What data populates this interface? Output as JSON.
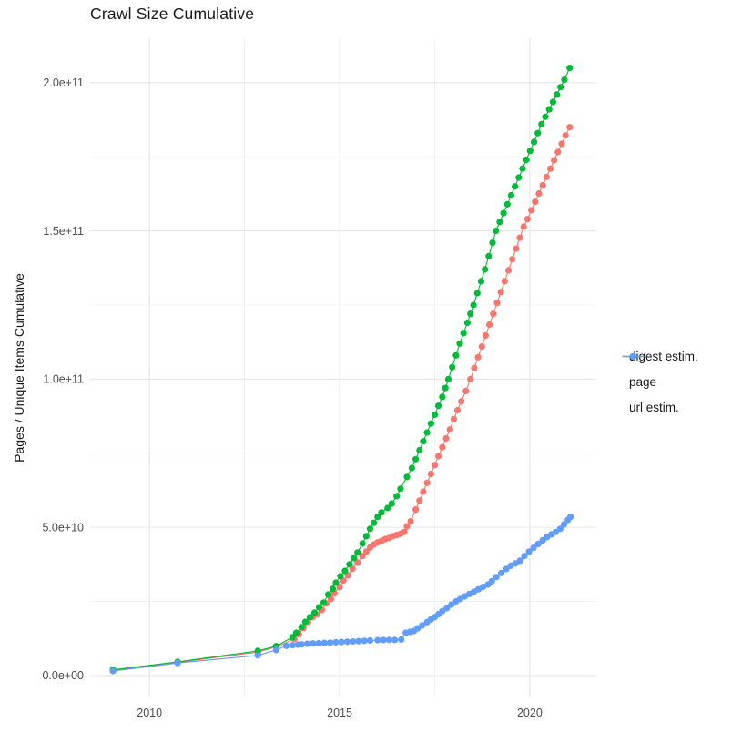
{
  "header": {
    "title": "Crawl Size Cumulative"
  },
  "chart_data": {
    "type": "line",
    "title": "Crawl Size Cumulative",
    "xlabel": "",
    "ylabel": "Pages / Unique Items Cumulative",
    "value_unit": "billions (1e9) of pages / unique items",
    "xlim": [
      2008.44,
      2021.75
    ],
    "ylim_e9": [
      -7.1,
      215
    ],
    "grid": "major and minor light-gray gridlines on white background",
    "legend_position": "right-center",
    "x_ticks": [
      {
        "label": "2010",
        "value": 2010
      },
      {
        "label": "2015",
        "value": 2015
      },
      {
        "label": "2020",
        "value": 2020
      }
    ],
    "x_minor_ticks": [
      2012.5,
      2017.5
    ],
    "y_ticks": [
      {
        "label": "0.0e+00",
        "value_e9": 0
      },
      {
        "label": "5.0e+10",
        "value_e9": 50
      },
      {
        "label": "1.0e+11",
        "value_e9": 100
      },
      {
        "label": "1.5e+11",
        "value_e9": 150
      },
      {
        "label": "2.0e+11",
        "value_e9": 200
      }
    ],
    "y_minor_ticks_e9": [
      25,
      75,
      125,
      175
    ],
    "series": [
      {
        "name": "digest estim.",
        "color": "#F8766D",
        "points": [
          [
            2009.04,
            1.7
          ],
          [
            2010.74,
            4.4
          ],
          [
            2012.85,
            7.9
          ],
          [
            2013.33,
            9.6
          ],
          [
            2013.81,
            12.3
          ],
          [
            2013.93,
            13.9
          ],
          [
            2014.05,
            16.0
          ],
          [
            2014.17,
            18.1
          ],
          [
            2014.29,
            19.7
          ],
          [
            2014.4,
            20.6
          ],
          [
            2014.53,
            22.1
          ],
          [
            2014.65,
            24.3
          ],
          [
            2014.77,
            25.8
          ],
          [
            2014.86,
            27.7
          ],
          [
            2015.0,
            29.8
          ],
          [
            2015.1,
            32.0
          ],
          [
            2015.22,
            33.8
          ],
          [
            2015.34,
            36.0
          ],
          [
            2015.47,
            38.1
          ],
          [
            2015.6,
            40.3
          ],
          [
            2015.7,
            41.8
          ],
          [
            2015.8,
            43.2
          ],
          [
            2015.9,
            44.2
          ],
          [
            2016.0,
            44.9
          ],
          [
            2016.1,
            45.4
          ],
          [
            2016.2,
            46.0
          ],
          [
            2016.3,
            46.4
          ],
          [
            2016.4,
            47.0
          ],
          [
            2016.5,
            47.4
          ],
          [
            2016.6,
            47.8
          ],
          [
            2016.7,
            48.4
          ],
          [
            2016.77,
            50.3
          ],
          [
            2016.87,
            52.0
          ],
          [
            2017.0,
            56.0
          ],
          [
            2017.1,
            59.0
          ],
          [
            2017.2,
            62.0
          ],
          [
            2017.3,
            65.0
          ],
          [
            2017.4,
            68.0
          ],
          [
            2017.5,
            71.0
          ],
          [
            2017.6,
            74.0
          ],
          [
            2017.7,
            77.0
          ],
          [
            2017.8,
            80.0
          ],
          [
            2017.9,
            83.0
          ],
          [
            2018.0,
            86.5
          ],
          [
            2018.1,
            89.5
          ],
          [
            2018.2,
            92.5
          ],
          [
            2018.32,
            96.0
          ],
          [
            2018.44,
            100.0
          ],
          [
            2018.54,
            103.7
          ],
          [
            2018.64,
            107.4
          ],
          [
            2018.74,
            111.0
          ],
          [
            2018.84,
            114.7
          ],
          [
            2018.94,
            118.4
          ],
          [
            2019.04,
            122.0
          ],
          [
            2019.14,
            125.7
          ],
          [
            2019.24,
            129.4
          ],
          [
            2019.34,
            133.0
          ],
          [
            2019.44,
            136.7
          ],
          [
            2019.54,
            140.4
          ],
          [
            2019.64,
            144.0
          ],
          [
            2019.74,
            147.7
          ],
          [
            2019.84,
            151.4
          ],
          [
            2019.94,
            154.0
          ],
          [
            2020.04,
            157.0
          ],
          [
            2020.14,
            159.8
          ],
          [
            2020.24,
            162.6
          ],
          [
            2020.34,
            165.4
          ],
          [
            2020.44,
            168.2
          ],
          [
            2020.54,
            171.0
          ],
          [
            2020.64,
            173.8
          ],
          [
            2020.74,
            176.6
          ],
          [
            2020.84,
            179.4
          ],
          [
            2020.94,
            182.2
          ],
          [
            2021.05,
            185.0
          ]
        ]
      },
      {
        "name": "page",
        "color": "#00BA38",
        "points": [
          [
            2009.04,
            1.9
          ],
          [
            2010.74,
            4.6
          ],
          [
            2012.85,
            8.3
          ],
          [
            2013.33,
            9.9
          ],
          [
            2013.76,
            12.9
          ],
          [
            2013.86,
            14.4
          ],
          [
            2014.0,
            16.3
          ],
          [
            2014.1,
            18.1
          ],
          [
            2014.22,
            19.7
          ],
          [
            2014.34,
            21.2
          ],
          [
            2014.46,
            23.0
          ],
          [
            2014.58,
            24.6
          ],
          [
            2014.7,
            27.3
          ],
          [
            2014.82,
            29.2
          ],
          [
            2014.9,
            31.3
          ],
          [
            2015.02,
            33.5
          ],
          [
            2015.14,
            35.3
          ],
          [
            2015.26,
            37.5
          ],
          [
            2015.38,
            39.6
          ],
          [
            2015.47,
            41.5
          ],
          [
            2015.6,
            44.5
          ],
          [
            2015.7,
            47.0
          ],
          [
            2015.8,
            49.5
          ],
          [
            2015.9,
            51.5
          ],
          [
            2016.0,
            53.5
          ],
          [
            2016.1,
            55.0
          ],
          [
            2016.26,
            56.5
          ],
          [
            2016.37,
            58.0
          ],
          [
            2016.5,
            60.5
          ],
          [
            2016.6,
            63.0
          ],
          [
            2016.77,
            67.0
          ],
          [
            2016.9,
            70.0
          ],
          [
            2017.0,
            73.0
          ],
          [
            2017.1,
            76.0
          ],
          [
            2017.2,
            79.0
          ],
          [
            2017.3,
            82.0
          ],
          [
            2017.4,
            85.0
          ],
          [
            2017.5,
            88.0
          ],
          [
            2017.6,
            91.0
          ],
          [
            2017.7,
            94.0
          ],
          [
            2017.78,
            97.0
          ],
          [
            2017.86,
            100.0
          ],
          [
            2017.96,
            104.0
          ],
          [
            2018.06,
            108.0
          ],
          [
            2018.16,
            112.0
          ],
          [
            2018.26,
            115.5
          ],
          [
            2018.36,
            119.0
          ],
          [
            2018.44,
            122.0
          ],
          [
            2018.52,
            125.0
          ],
          [
            2018.62,
            129.0
          ],
          [
            2018.72,
            133.0
          ],
          [
            2018.82,
            137.0
          ],
          [
            2018.92,
            141.5
          ],
          [
            2019.02,
            146.0
          ],
          [
            2019.11,
            150.0
          ],
          [
            2019.21,
            153.0
          ],
          [
            2019.31,
            156.0
          ],
          [
            2019.41,
            159.0
          ],
          [
            2019.51,
            162.0
          ],
          [
            2019.61,
            165.0
          ],
          [
            2019.71,
            168.0
          ],
          [
            2019.81,
            171.0
          ],
          [
            2019.91,
            174.0
          ],
          [
            2020.01,
            177.0
          ],
          [
            2020.11,
            180.0
          ],
          [
            2020.21,
            183.0
          ],
          [
            2020.31,
            186.0
          ],
          [
            2020.41,
            188.5
          ],
          [
            2020.51,
            191.0
          ],
          [
            2020.61,
            193.5
          ],
          [
            2020.71,
            196.0
          ],
          [
            2020.81,
            198.5
          ],
          [
            2020.91,
            201.0
          ],
          [
            2021.05,
            205.0
          ]
        ]
      },
      {
        "name": "url estim.",
        "color": "#619CFF",
        "points": [
          [
            2009.04,
            1.5
          ],
          [
            2010.74,
            4.2
          ],
          [
            2012.85,
            6.8
          ],
          [
            2013.33,
            8.6
          ],
          [
            2013.6,
            10.0
          ],
          [
            2013.76,
            10.2
          ],
          [
            2013.9,
            10.4
          ],
          [
            2014.0,
            10.5
          ],
          [
            2014.15,
            10.7
          ],
          [
            2014.3,
            10.8
          ],
          [
            2014.45,
            10.9
          ],
          [
            2014.6,
            11.0
          ],
          [
            2014.75,
            11.1
          ],
          [
            2014.9,
            11.2
          ],
          [
            2015.05,
            11.3
          ],
          [
            2015.2,
            11.4
          ],
          [
            2015.35,
            11.5
          ],
          [
            2015.5,
            11.6
          ],
          [
            2015.65,
            11.7
          ],
          [
            2015.8,
            11.8
          ],
          [
            2016.0,
            11.9
          ],
          [
            2016.15,
            11.95
          ],
          [
            2016.3,
            12.0
          ],
          [
            2016.45,
            12.0
          ],
          [
            2016.62,
            12.1
          ],
          [
            2016.74,
            14.4
          ],
          [
            2016.85,
            14.7
          ],
          [
            2016.95,
            15.0
          ],
          [
            2017.05,
            15.9
          ],
          [
            2017.17,
            16.9
          ],
          [
            2017.3,
            18.0
          ],
          [
            2017.4,
            18.9
          ],
          [
            2017.5,
            19.7
          ],
          [
            2017.6,
            20.7
          ],
          [
            2017.7,
            21.7
          ],
          [
            2017.82,
            22.7
          ],
          [
            2017.94,
            23.9
          ],
          [
            2018.06,
            25.0
          ],
          [
            2018.17,
            25.8
          ],
          [
            2018.29,
            26.7
          ],
          [
            2018.41,
            27.5
          ],
          [
            2018.53,
            28.3
          ],
          [
            2018.65,
            29.1
          ],
          [
            2018.77,
            29.9
          ],
          [
            2018.9,
            30.7
          ],
          [
            2019.0,
            31.8
          ],
          [
            2019.12,
            33.2
          ],
          [
            2019.25,
            34.6
          ],
          [
            2019.38,
            35.9
          ],
          [
            2019.5,
            37.0
          ],
          [
            2019.62,
            37.8
          ],
          [
            2019.74,
            38.7
          ],
          [
            2019.86,
            40.3
          ],
          [
            2019.98,
            41.8
          ],
          [
            2020.1,
            43.1
          ],
          [
            2020.22,
            44.4
          ],
          [
            2020.34,
            45.6
          ],
          [
            2020.45,
            46.7
          ],
          [
            2020.57,
            47.6
          ],
          [
            2020.68,
            48.4
          ],
          [
            2020.8,
            49.5
          ],
          [
            2020.9,
            51.0
          ],
          [
            2021.0,
            52.5
          ],
          [
            2021.07,
            53.5
          ]
        ]
      }
    ],
    "style": {
      "major_grid_color": "#E6E6E6",
      "minor_grid_color": "#F2F2F2",
      "tick_label_color": "#4D4D4D",
      "text_color": "#1A1A1A",
      "point_radius": 3.6
    }
  }
}
